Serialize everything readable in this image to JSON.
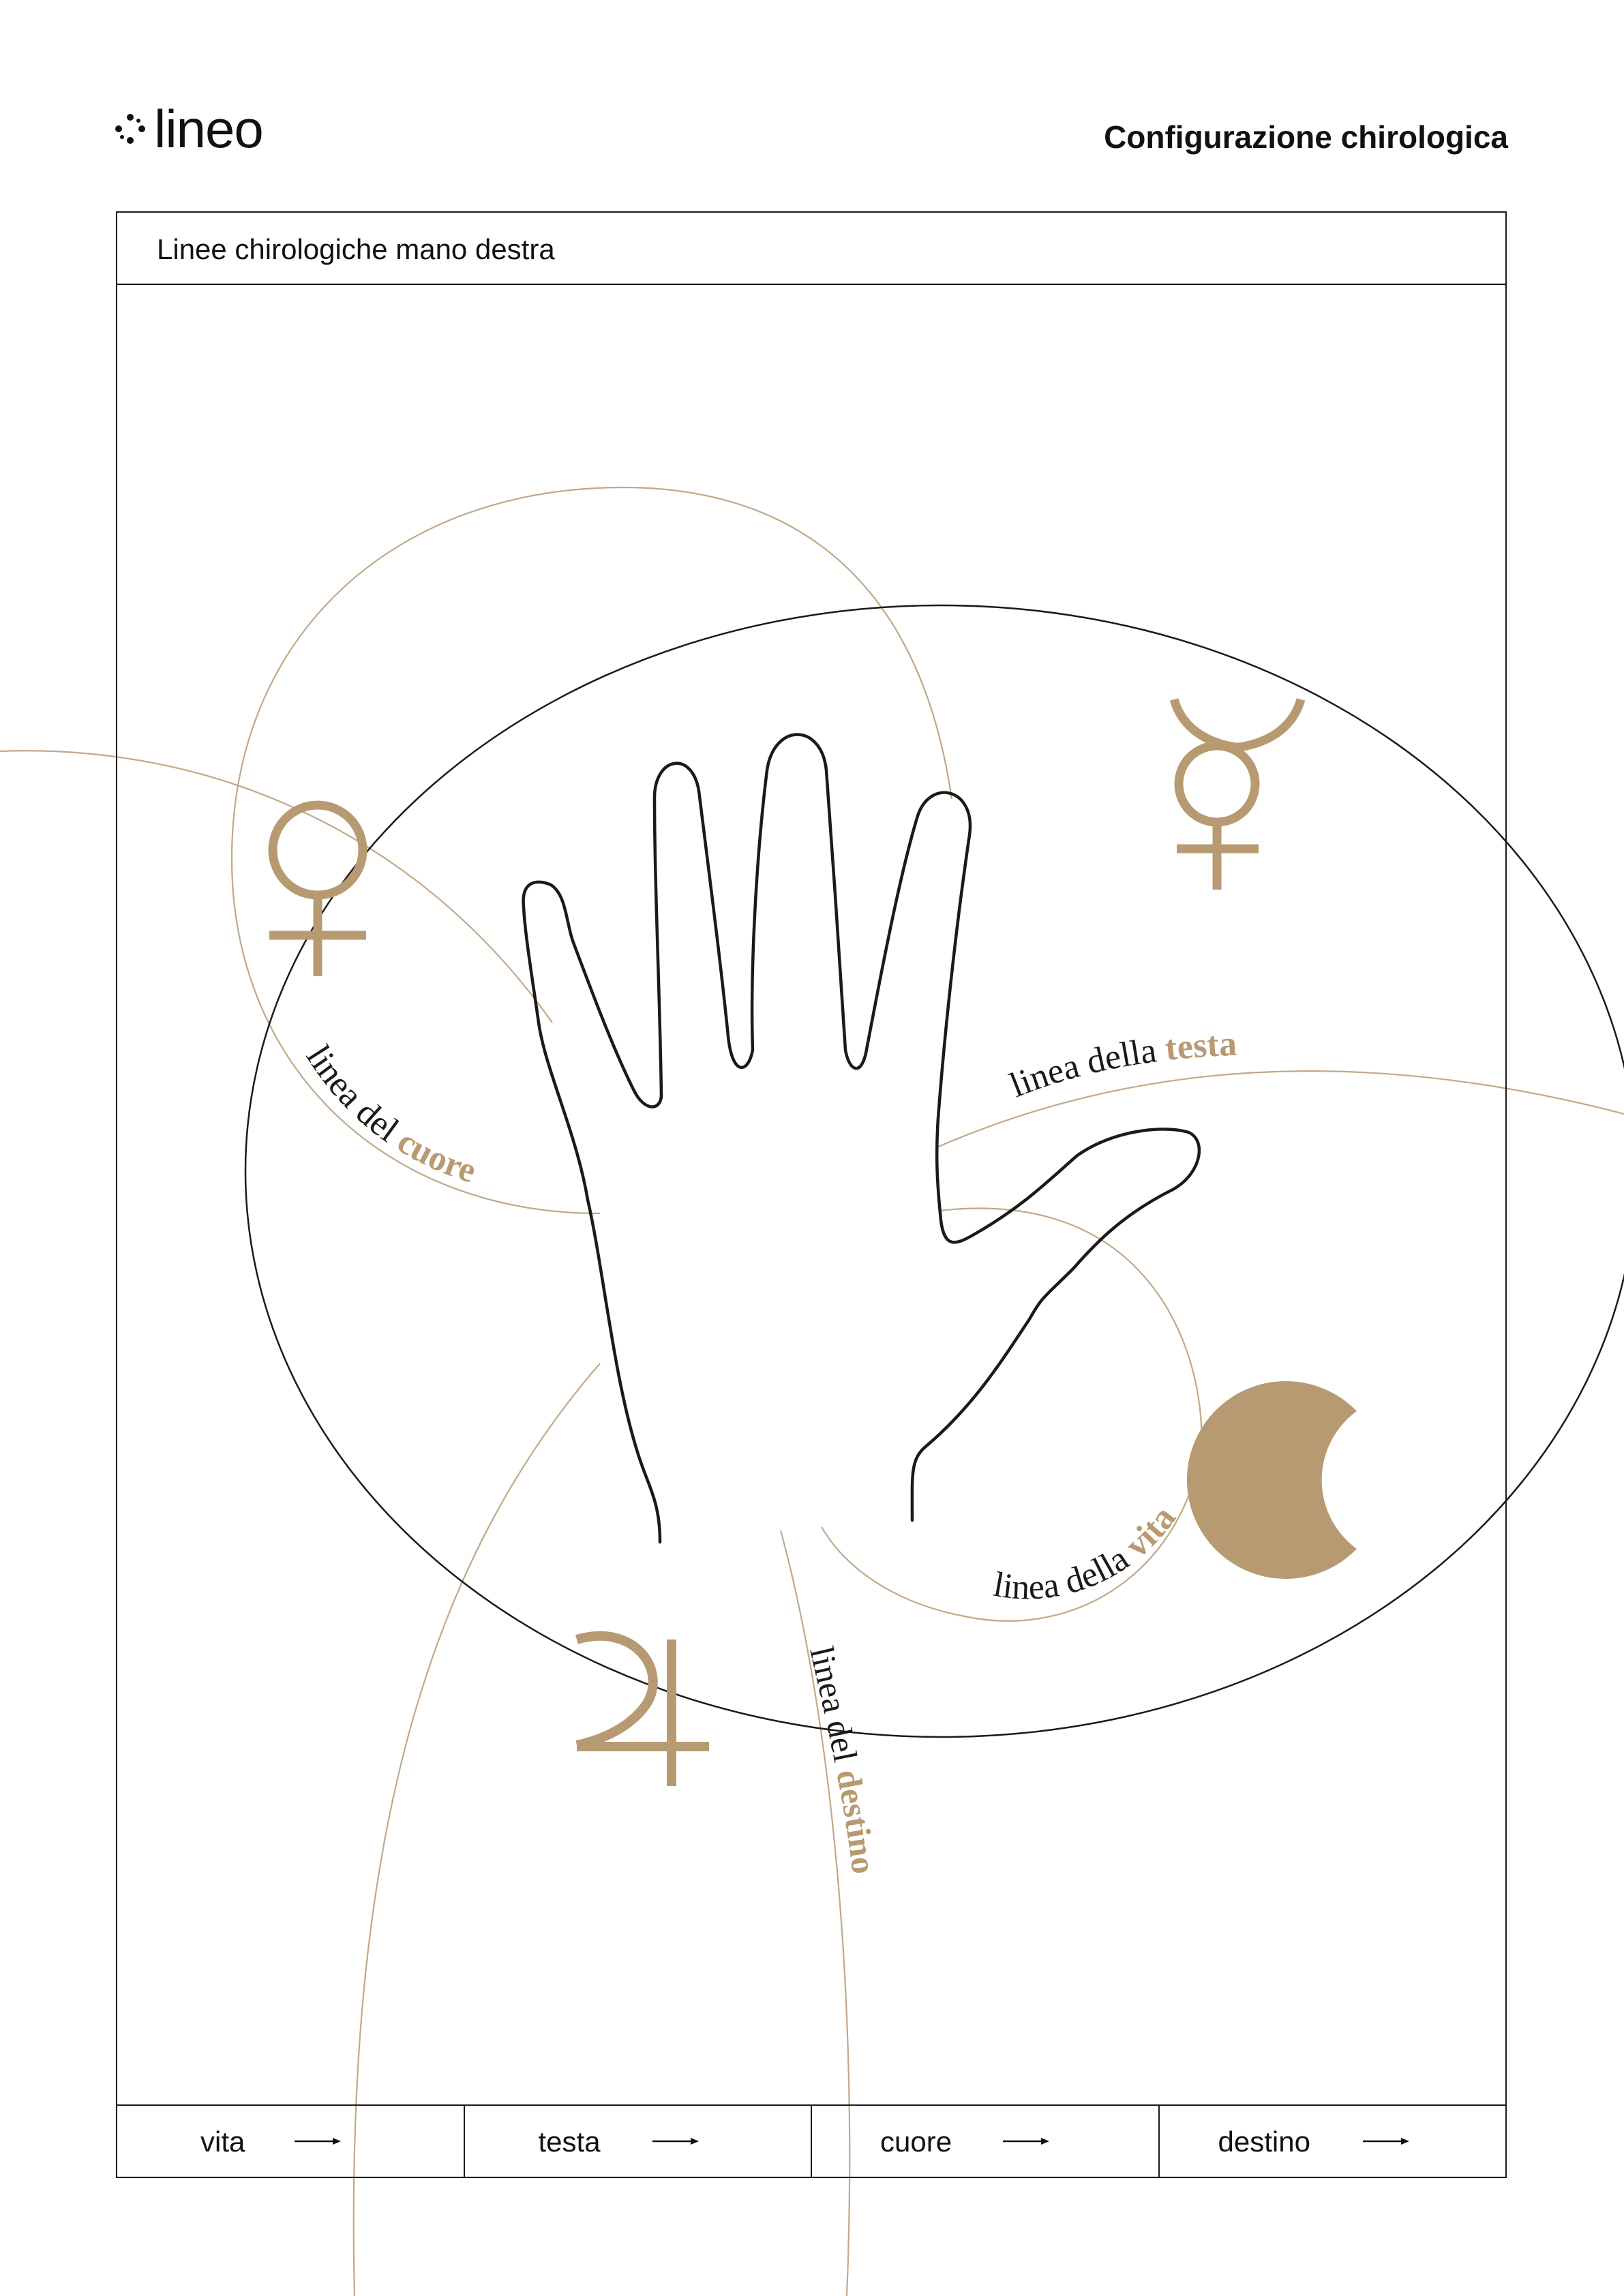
{
  "header": {
    "brand": "lineo",
    "doc_title": "Configurazione chirologica"
  },
  "panel": {
    "title": "Linee chirologiche mano destra"
  },
  "diagram": {
    "accent_color": "#b89a72",
    "line_color": "#1a1a1a",
    "labels": {
      "heart": {
        "prefix": "linea del ",
        "key": "cuore"
      },
      "head": {
        "prefix": "linea della ",
        "key": "testa"
      },
      "life": {
        "prefix": "linea della ",
        "key": "vita"
      },
      "fate": {
        "prefix": "linea del ",
        "key": "destino"
      }
    },
    "symbols": [
      "venus-symbol",
      "mercury-symbol",
      "moon-symbol",
      "jupiter-symbol"
    ]
  },
  "legend": {
    "items": [
      {
        "label": "vita",
        "icon": "arrow-right-icon"
      },
      {
        "label": "testa",
        "icon": "arrow-right-icon"
      },
      {
        "label": "cuore",
        "icon": "arrow-right-icon"
      },
      {
        "label": "destino",
        "icon": "arrow-right-icon"
      }
    ]
  }
}
